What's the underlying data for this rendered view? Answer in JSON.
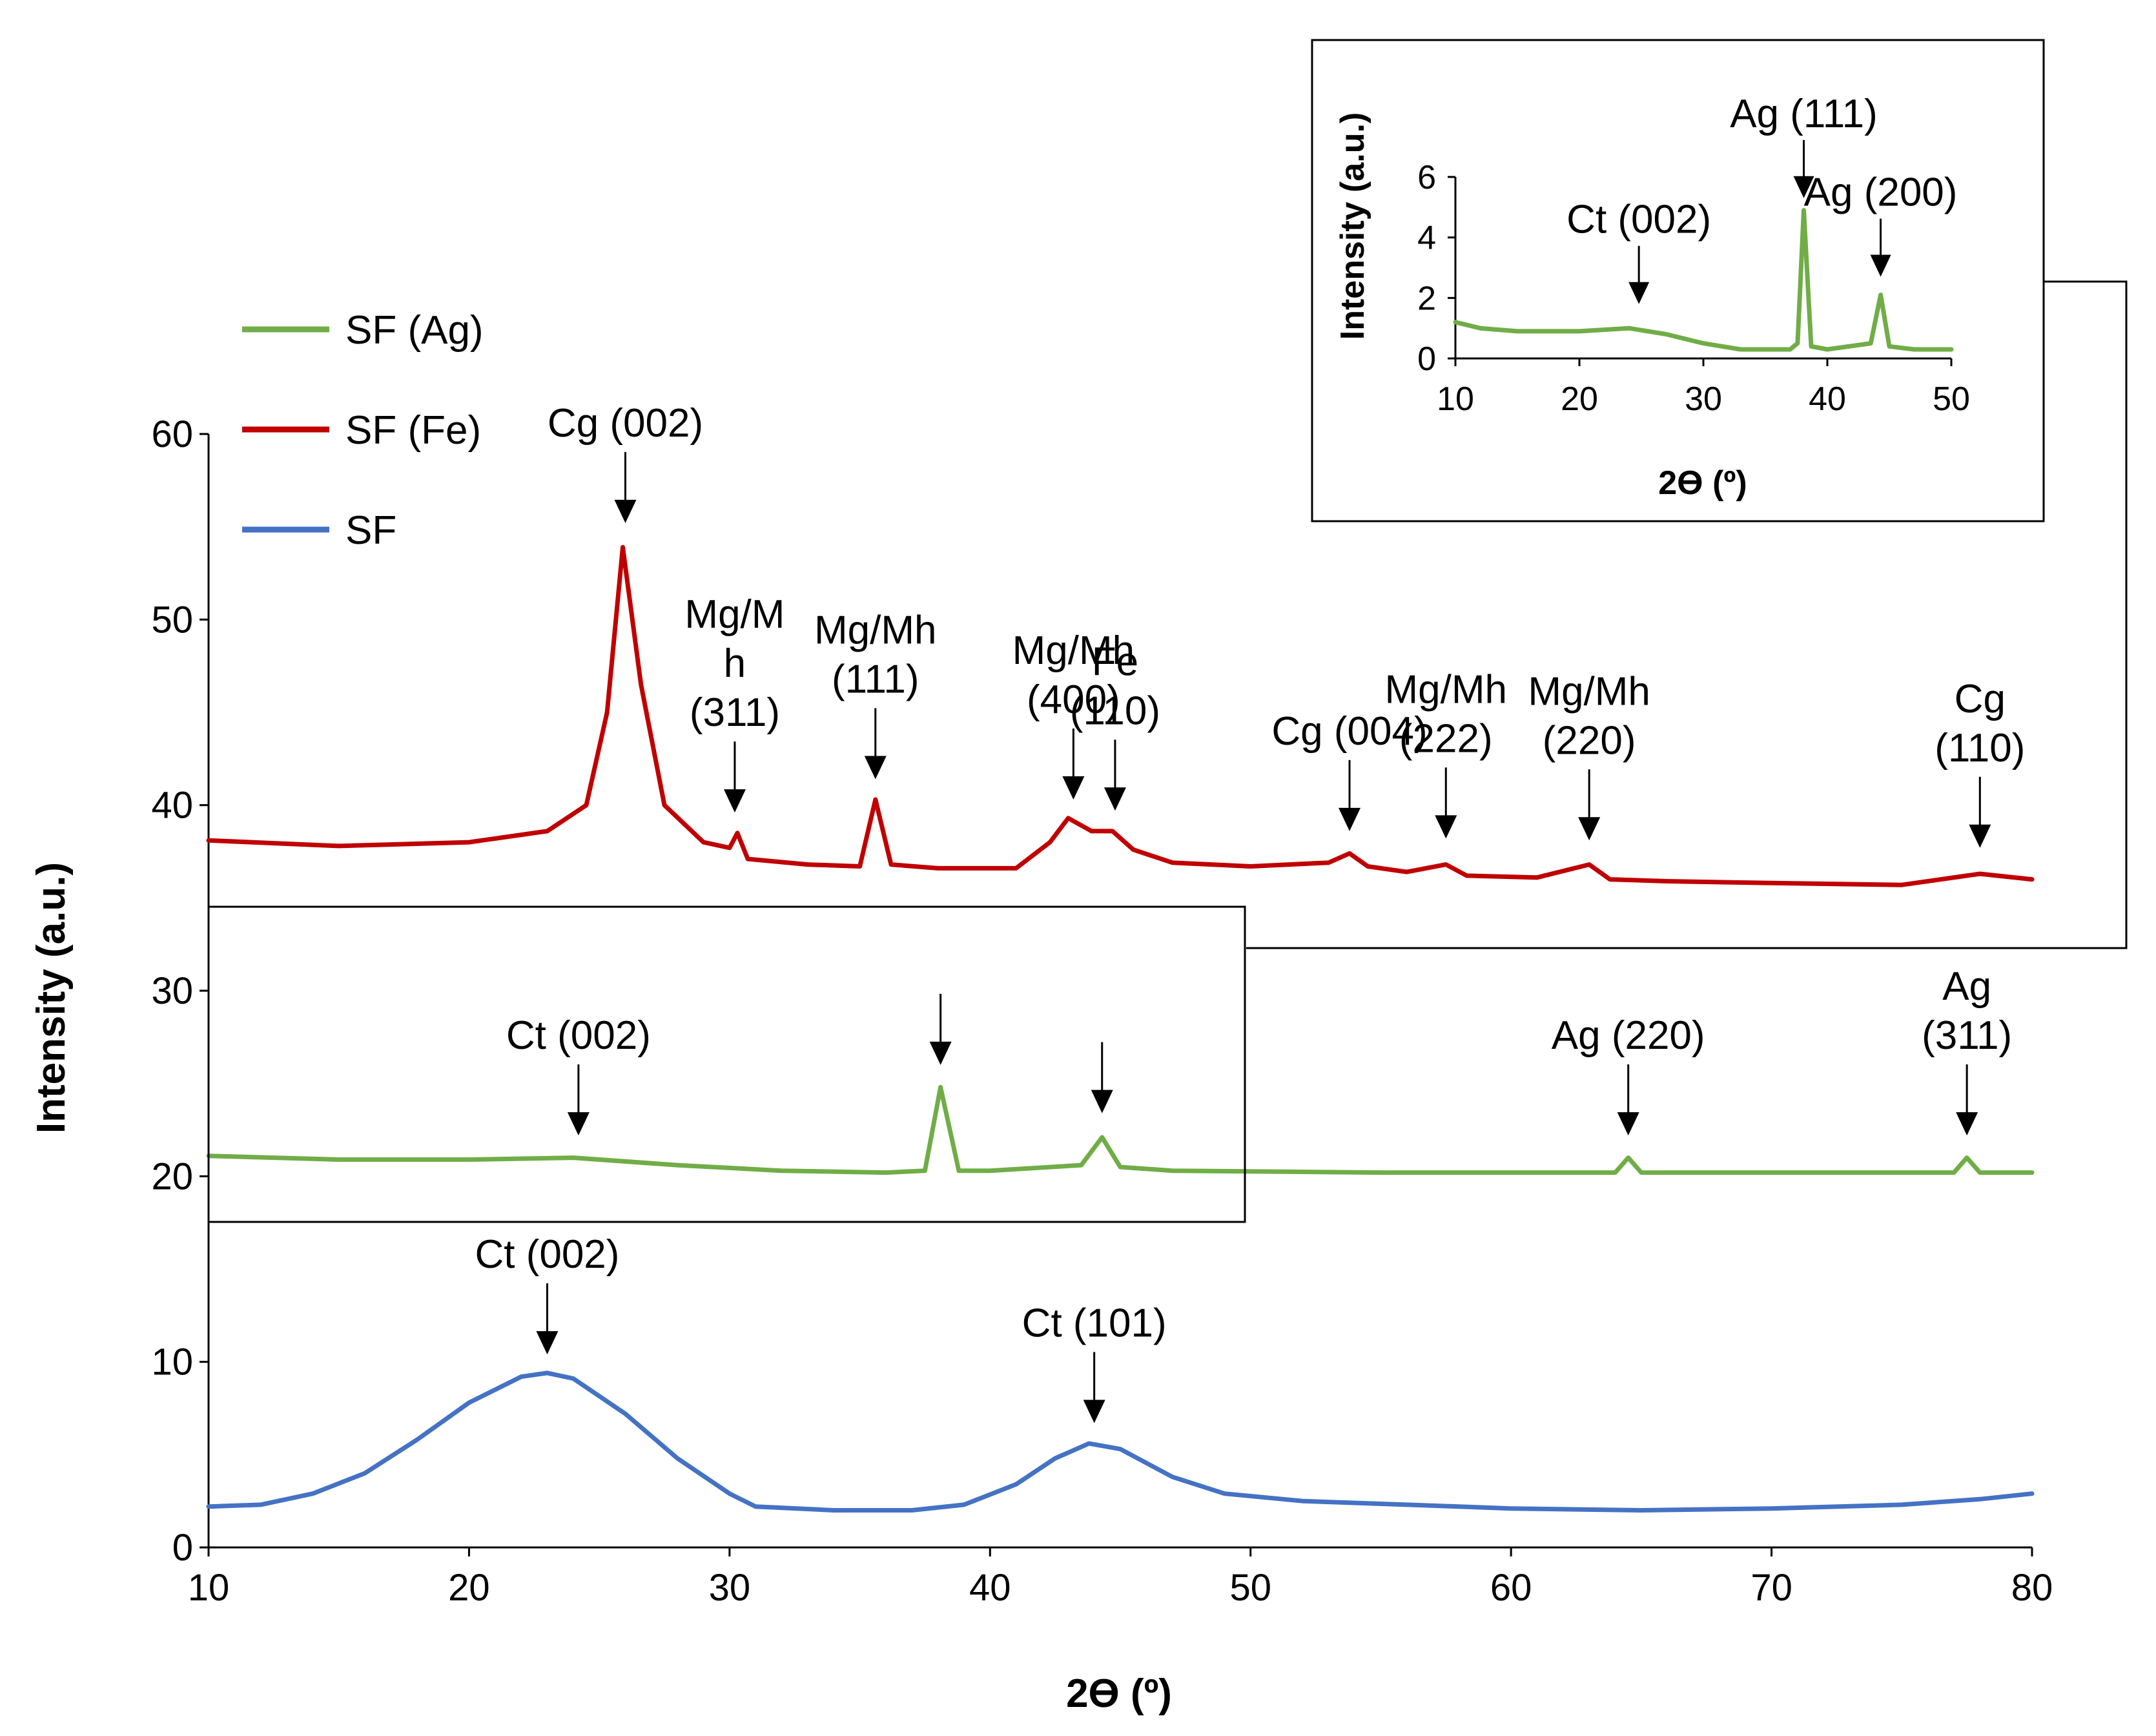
{
  "chart_data": [
    {
      "type": "line",
      "xlabel": "2ϴ (º)",
      "ylabel": "Intensity (a.u.)",
      "xlim": [
        10,
        80
      ],
      "ylim": [
        0,
        60
      ],
      "xticks": [
        10,
        20,
        30,
        40,
        50,
        60,
        70,
        80
      ],
      "yticks": [
        0,
        10,
        20,
        30,
        40,
        50,
        60
      ],
      "grid": false,
      "legend": "top-left",
      "series": [
        {
          "name": "SF (Ag)",
          "color": "#70ad47",
          "points": [
            [
              10,
              21.1
            ],
            [
              15,
              20.9
            ],
            [
              20,
              20.9
            ],
            [
              24,
              21.0
            ],
            [
              28,
              20.6
            ],
            [
              32,
              20.3
            ],
            [
              36,
              20.2
            ],
            [
              37.5,
              20.3
            ],
            [
              38.1,
              24.8
            ],
            [
              38.8,
              20.3
            ],
            [
              40,
              20.3
            ],
            [
              43.5,
              20.6
            ],
            [
              44.3,
              22.1
            ],
            [
              45,
              20.5
            ],
            [
              47,
              20.3
            ],
            [
              55,
              20.2
            ],
            [
              64,
              20.2
            ],
            [
              64.5,
              21.0
            ],
            [
              65,
              20.2
            ],
            [
              70,
              20.2
            ],
            [
              77,
              20.2
            ],
            [
              77.5,
              21.0
            ],
            [
              78,
              20.2
            ],
            [
              80,
              20.2
            ]
          ]
        },
        {
          "name": "SF (Fe)",
          "color": "#c00000",
          "points": [
            [
              10,
              38.1
            ],
            [
              15,
              37.8
            ],
            [
              20,
              38.0
            ],
            [
              23,
              38.6
            ],
            [
              24.5,
              40.0
            ],
            [
              25.3,
              45.0
            ],
            [
              25.9,
              53.9
            ],
            [
              26.6,
              46.5
            ],
            [
              27.5,
              40.0
            ],
            [
              29,
              38.0
            ],
            [
              30,
              37.7
            ],
            [
              30.3,
              38.5
            ],
            [
              30.7,
              37.1
            ],
            [
              33,
              36.8
            ],
            [
              35,
              36.7
            ],
            [
              35.6,
              40.3
            ],
            [
              36.2,
              36.8
            ],
            [
              38,
              36.6
            ],
            [
              41,
              36.6
            ],
            [
              42.3,
              38.0
            ],
            [
              43,
              39.3
            ],
            [
              43.9,
              38.6
            ],
            [
              44.7,
              38.6
            ],
            [
              45.5,
              37.6
            ],
            [
              47,
              36.9
            ],
            [
              50,
              36.7
            ],
            [
              53,
              36.9
            ],
            [
              53.8,
              37.4
            ],
            [
              54.5,
              36.7
            ],
            [
              56,
              36.4
            ],
            [
              57.5,
              36.8
            ],
            [
              58.3,
              36.2
            ],
            [
              61,
              36.1
            ],
            [
              63,
              36.8
            ],
            [
              63.8,
              36.0
            ],
            [
              66,
              35.9
            ],
            [
              70,
              35.8
            ],
            [
              75,
              35.7
            ],
            [
              78,
              36.3
            ],
            [
              80,
              36.0
            ]
          ]
        },
        {
          "name": "SF",
          "color": "#4472c4",
          "points": [
            [
              10,
              2.2
            ],
            [
              12,
              2.3
            ],
            [
              14,
              2.9
            ],
            [
              16,
              4.0
            ],
            [
              18,
              5.8
            ],
            [
              20,
              7.8
            ],
            [
              22,
              9.2
            ],
            [
              23,
              9.4
            ],
            [
              24,
              9.1
            ],
            [
              26,
              7.2
            ],
            [
              28,
              4.8
            ],
            [
              30,
              2.9
            ],
            [
              31,
              2.2
            ],
            [
              34,
              2.0
            ],
            [
              37,
              2.0
            ],
            [
              39,
              2.3
            ],
            [
              41,
              3.4
            ],
            [
              42.5,
              4.8
            ],
            [
              43.8,
              5.6
            ],
            [
              45,
              5.3
            ],
            [
              47,
              3.8
            ],
            [
              49,
              2.9
            ],
            [
              52,
              2.5
            ],
            [
              56,
              2.3
            ],
            [
              60,
              2.1
            ],
            [
              65,
              2.0
            ],
            [
              70,
              2.1
            ],
            [
              75,
              2.3
            ],
            [
              78,
              2.6
            ],
            [
              80,
              2.9
            ]
          ]
        }
      ],
      "annotations": [
        {
          "lines": [
            "Cg (002)"
          ],
          "x": 26.0,
          "y_tip": 55.2
        },
        {
          "lines": [
            "Mg/M",
            "h",
            "(311)"
          ],
          "x": 30.2,
          "y_tip": 39.6
        },
        {
          "lines": [
            "Mg/Mh",
            "(111)"
          ],
          "x": 35.6,
          "y_tip": 41.4
        },
        {
          "lines": [
            "Mg/Mh",
            "(400)"
          ],
          "x": 43.2,
          "y_tip": 40.3
        },
        {
          "lines": [
            "Fe",
            "(110)"
          ],
          "x": 44.8,
          "y_tip": 39.7
        },
        {
          "lines": [
            "Cg (004)"
          ],
          "x": 53.8,
          "y_tip": 38.6
        },
        {
          "lines": [
            "Mg/Mh",
            "(222)"
          ],
          "x": 57.5,
          "y_tip": 38.2
        },
        {
          "lines": [
            "Mg/Mh",
            "(220)"
          ],
          "x": 63.0,
          "y_tip": 38.1
        },
        {
          "lines": [
            "Cg",
            "(110)"
          ],
          "x": 78.0,
          "y_tip": 37.7
        },
        {
          "lines": [
            "Ct (002)"
          ],
          "x": 24.2,
          "y_tip": 22.2
        },
        {
          "lines": [
            ""
          ],
          "x": 38.1,
          "y_tip": 26.0
        },
        {
          "lines": [
            ""
          ],
          "x": 44.3,
          "y_tip": 23.4
        },
        {
          "lines": [
            "Ag (220)"
          ],
          "x": 64.5,
          "y_tip": 22.2
        },
        {
          "lines": [
            "Ag",
            "(311)"
          ],
          "x": 77.5,
          "y_tip": 22.2
        },
        {
          "lines": [
            "Ct (002)"
          ],
          "x": 23.0,
          "y_tip": 10.4
        },
        {
          "lines": [
            "Ct (101)"
          ],
          "x": 44.0,
          "y_tip": 6.7
        }
      ]
    },
    {
      "type": "line",
      "xlabel": "2ϴ (º)",
      "ylabel": "Intensity (a.u.)",
      "xlim": [
        10,
        50
      ],
      "ylim": [
        0,
        6
      ],
      "xticks": [
        10,
        20,
        30,
        40,
        50
      ],
      "yticks": [
        0,
        2,
        4,
        6
      ],
      "grid": false,
      "series": [
        {
          "name": "SF (Ag)",
          "color": "#70ad47",
          "points": [
            [
              10,
              1.2
            ],
            [
              12,
              1.0
            ],
            [
              15,
              0.9
            ],
            [
              20,
              0.9
            ],
            [
              24,
              1.0
            ],
            [
              27,
              0.8
            ],
            [
              30,
              0.5
            ],
            [
              33,
              0.3
            ],
            [
              37,
              0.3
            ],
            [
              37.6,
              0.5
            ],
            [
              38.1,
              4.9
            ],
            [
              38.7,
              0.4
            ],
            [
              40,
              0.3
            ],
            [
              43.5,
              0.5
            ],
            [
              44.3,
              2.1
            ],
            [
              45,
              0.4
            ],
            [
              47,
              0.3
            ],
            [
              50,
              0.3
            ]
          ]
        }
      ],
      "annotations": [
        {
          "lines": [
            "Ct (002)"
          ],
          "x": 24.8,
          "y_tip": 1.8
        },
        {
          "lines": [
            "Ag (111)"
          ],
          "x": 38.1,
          "y_tip": 5.3
        },
        {
          "lines": [
            "Ag (200)"
          ],
          "x": 44.3,
          "y_tip": 2.7
        }
      ]
    }
  ]
}
